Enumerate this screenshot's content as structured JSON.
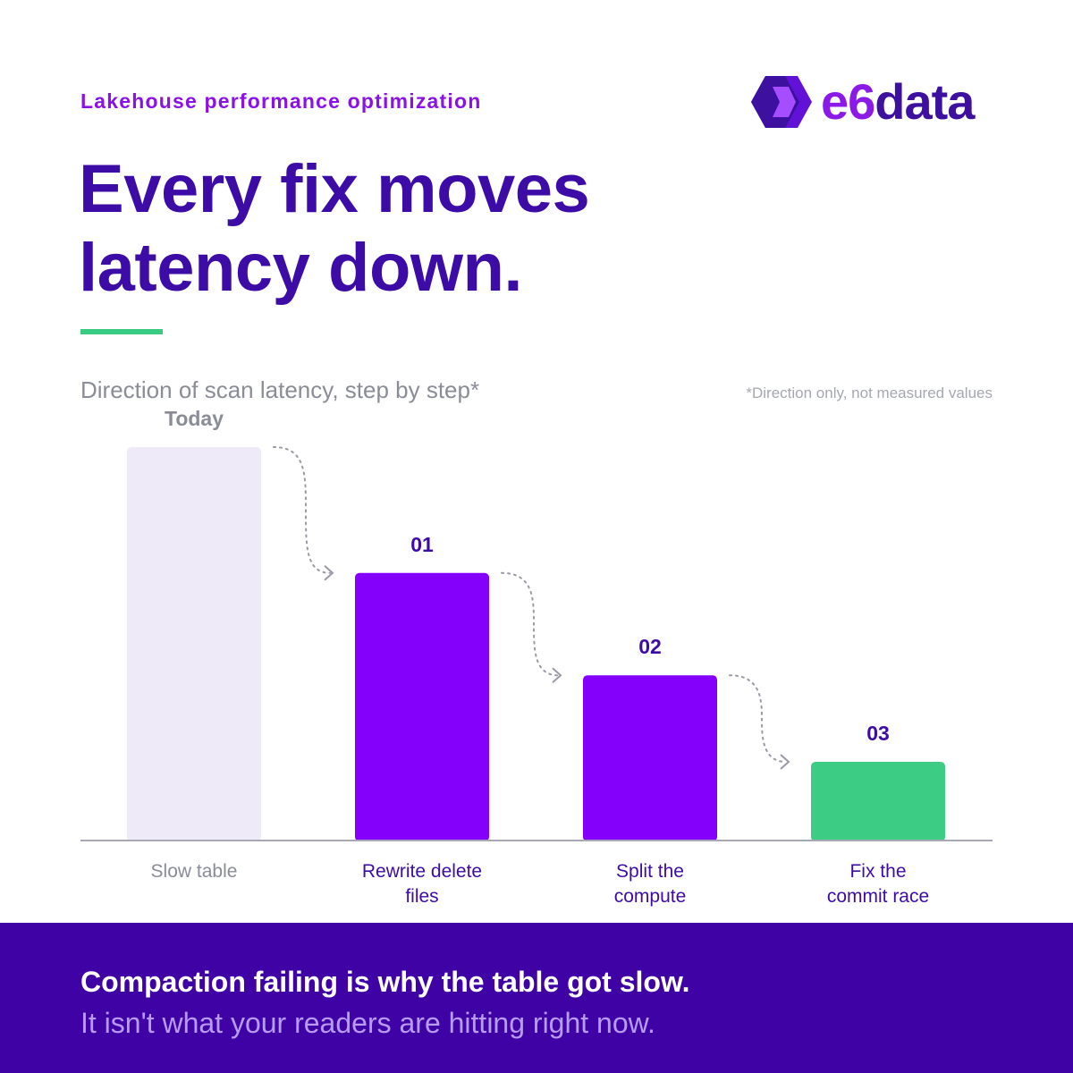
{
  "header": {
    "eyebrow": "Lakehouse performance optimization",
    "logo": {
      "prefix": "e6",
      "suffix": "data"
    },
    "headline_line1": "Every fix moves",
    "headline_line2": "latency down."
  },
  "chart_data": {
    "type": "bar",
    "title": "Direction of scan latency, step by step*",
    "footnote": "*Direction only, not measured values",
    "ylim": [
      0,
      100
    ],
    "grid": false,
    "categories": [
      [
        "Slow table"
      ],
      [
        "Rewrite delete",
        "files"
      ],
      [
        "Split the",
        "compute"
      ],
      [
        "Fix the",
        "commit race"
      ]
    ],
    "step_labels": [
      "Today",
      "01",
      "02",
      "03"
    ],
    "values": [
      100,
      68,
      42,
      20
    ],
    "colors": [
      "#eeeaf7",
      "#8400fa",
      "#8400fa",
      "#3ccc84"
    ],
    "step_label_colors": [
      "#8a8c96",
      "#3d0ca6",
      "#3d0ca6",
      "#3d0ca6"
    ],
    "category_label_colors": [
      "#8a8c96",
      "#3d0ca6",
      "#3d0ca6",
      "#3d0ca6"
    ],
    "axis_color": "#a8a8b4",
    "connector_color": "#9a9aa6"
  },
  "footer": {
    "line1": "Compaction failing is why the table got slow.",
    "line2": "It isn't what your readers are hitting right now."
  }
}
